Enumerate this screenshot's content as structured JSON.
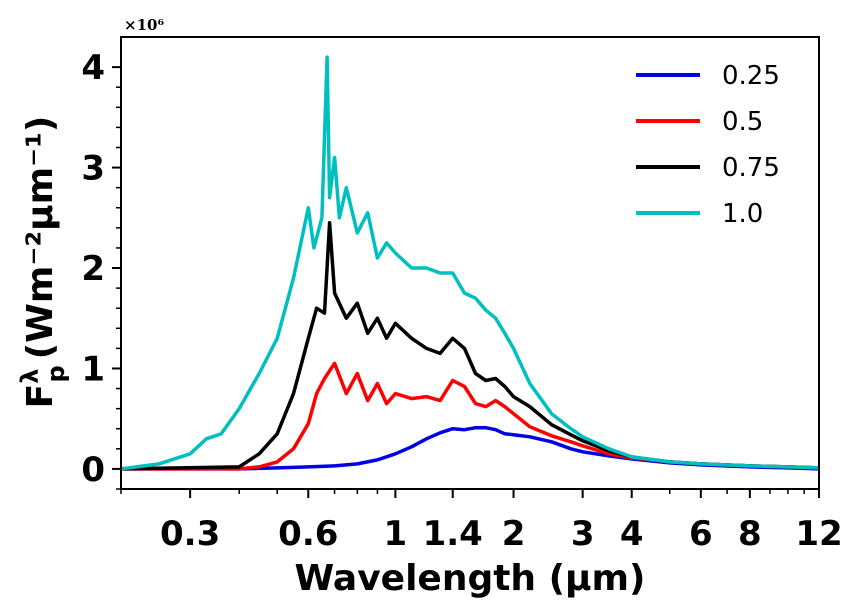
{
  "chart_data": {
    "type": "line",
    "xlabel": "Wavelength (μm)",
    "ylabel_main": "F",
    "ylabel_sup": "λ",
    "ylabel_sub": "p",
    "ylabel_units": "(Wm⁻²μm⁻¹)",
    "y_scale_factor": "×10⁶",
    "xscale": "log",
    "xlim": [
      0.2,
      12
    ],
    "ylim": [
      -0.2,
      4.3
    ],
    "x_ticks": [
      {
        "value": 0.3,
        "label": "0.3"
      },
      {
        "value": 0.6,
        "label": "0.6"
      },
      {
        "value": 1,
        "label": "1"
      },
      {
        "value": 1.4,
        "label": "1.4"
      },
      {
        "value": 2,
        "label": "2"
      },
      {
        "value": 3,
        "label": "3"
      },
      {
        "value": 4,
        "label": "4"
      },
      {
        "value": 6,
        "label": "6"
      },
      {
        "value": 8,
        "label": "8"
      },
      {
        "value": 12,
        "label": "12"
      }
    ],
    "y_ticks": [
      {
        "value": 0,
        "label": "0"
      },
      {
        "value": 1,
        "label": "1"
      },
      {
        "value": 2,
        "label": "2"
      },
      {
        "value": 3,
        "label": "3"
      },
      {
        "value": 4,
        "label": "4"
      }
    ],
    "legend_position": "top-right",
    "series": [
      {
        "name": "0.25",
        "color": "#0000e6",
        "x": [
          0.2,
          0.4,
          0.5,
          0.6,
          0.7,
          0.8,
          0.9,
          1.0,
          1.1,
          1.2,
          1.3,
          1.4,
          1.5,
          1.6,
          1.7,
          1.8,
          1.9,
          2.0,
          2.2,
          2.5,
          2.8,
          3.0,
          3.5,
          4.0,
          5.0,
          6.0,
          8.0,
          10.0,
          12.0
        ],
        "y": [
          0.0,
          0.0,
          0.01,
          0.02,
          0.03,
          0.05,
          0.09,
          0.15,
          0.22,
          0.3,
          0.36,
          0.4,
          0.39,
          0.41,
          0.41,
          0.39,
          0.35,
          0.34,
          0.32,
          0.27,
          0.2,
          0.17,
          0.13,
          0.1,
          0.06,
          0.04,
          0.02,
          0.01,
          0.0
        ]
      },
      {
        "name": "0.5",
        "color": "#ff0000",
        "x": [
          0.2,
          0.4,
          0.45,
          0.5,
          0.55,
          0.6,
          0.63,
          0.66,
          0.7,
          0.75,
          0.8,
          0.85,
          0.9,
          0.95,
          1.0,
          1.1,
          1.2,
          1.3,
          1.4,
          1.5,
          1.6,
          1.7,
          1.8,
          1.9,
          2.0,
          2.2,
          2.5,
          2.8,
          3.0,
          3.5,
          4.0,
          5.0,
          6.0,
          8.0,
          10.0,
          12.0
        ],
        "y": [
          0.0,
          0.0,
          0.02,
          0.07,
          0.2,
          0.45,
          0.75,
          0.9,
          1.05,
          0.75,
          0.95,
          0.68,
          0.85,
          0.65,
          0.75,
          0.7,
          0.72,
          0.68,
          0.88,
          0.82,
          0.65,
          0.62,
          0.68,
          0.62,
          0.55,
          0.42,
          0.33,
          0.27,
          0.23,
          0.15,
          0.11,
          0.07,
          0.05,
          0.03,
          0.02,
          0.01
        ]
      },
      {
        "name": "0.75",
        "color": "#000000",
        "x": [
          0.2,
          0.4,
          0.45,
          0.5,
          0.55,
          0.6,
          0.63,
          0.66,
          0.68,
          0.7,
          0.75,
          0.8,
          0.85,
          0.9,
          0.95,
          1.0,
          1.1,
          1.2,
          1.3,
          1.4,
          1.5,
          1.6,
          1.7,
          1.8,
          1.9,
          2.0,
          2.2,
          2.5,
          2.8,
          3.0,
          3.5,
          4.0,
          5.0,
          6.0,
          8.0,
          10.0,
          12.0
        ],
        "y": [
          0.0,
          0.02,
          0.15,
          0.35,
          0.75,
          1.3,
          1.6,
          1.55,
          2.45,
          1.75,
          1.5,
          1.65,
          1.35,
          1.5,
          1.3,
          1.45,
          1.3,
          1.2,
          1.15,
          1.3,
          1.2,
          0.95,
          0.88,
          0.9,
          0.82,
          0.72,
          0.62,
          0.44,
          0.34,
          0.28,
          0.18,
          0.12,
          0.07,
          0.05,
          0.03,
          0.02,
          0.01
        ]
      },
      {
        "name": "1.0",
        "color": "#00bfbf",
        "x": [
          0.2,
          0.25,
          0.3,
          0.33,
          0.36,
          0.4,
          0.45,
          0.5,
          0.55,
          0.6,
          0.62,
          0.65,
          0.67,
          0.68,
          0.7,
          0.72,
          0.75,
          0.8,
          0.85,
          0.9,
          0.95,
          1.0,
          1.1,
          1.2,
          1.3,
          1.4,
          1.5,
          1.6,
          1.7,
          1.8,
          1.9,
          2.0,
          2.2,
          2.5,
          2.8,
          3.0,
          3.5,
          4.0,
          5.0,
          6.0,
          8.0,
          10.0,
          12.0
        ],
        "y": [
          0.0,
          0.05,
          0.15,
          0.3,
          0.35,
          0.6,
          0.95,
          1.3,
          1.9,
          2.6,
          2.2,
          2.5,
          4.1,
          2.7,
          3.1,
          2.5,
          2.8,
          2.35,
          2.55,
          2.1,
          2.25,
          2.15,
          2.0,
          2.0,
          1.95,
          1.95,
          1.75,
          1.7,
          1.58,
          1.5,
          1.35,
          1.2,
          0.85,
          0.55,
          0.4,
          0.32,
          0.2,
          0.12,
          0.07,
          0.05,
          0.03,
          0.02,
          0.01
        ]
      }
    ]
  }
}
